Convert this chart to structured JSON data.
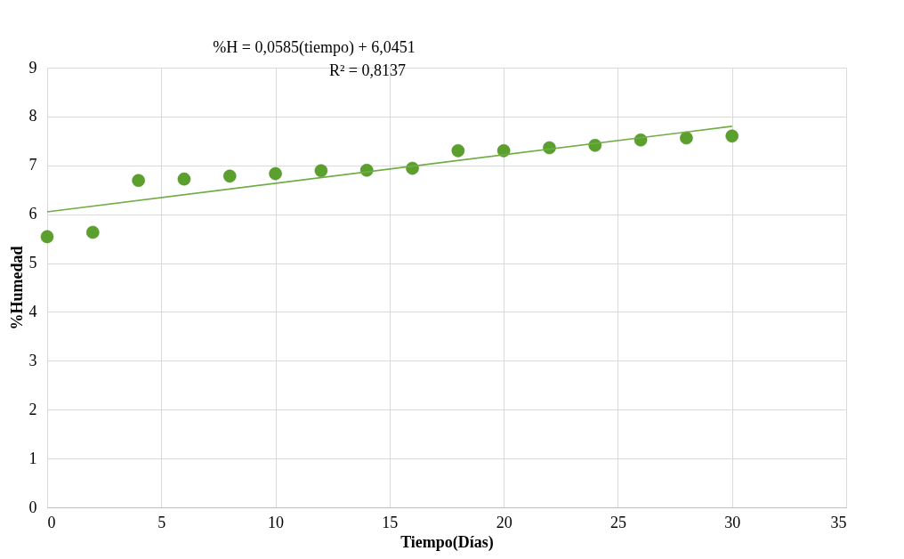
{
  "chart_data": {
    "type": "scatter",
    "xlabel": "Tiempo(Días)",
    "ylabel": "%Humedad",
    "annotations": [
      "%H = 0,0585(tiempo) + 6,0451",
      "R² = 0,8137"
    ],
    "x": [
      0,
      2,
      4,
      6,
      8,
      10,
      12,
      14,
      16,
      18,
      20,
      22,
      24,
      26,
      28,
      30
    ],
    "series": [
      {
        "color": "#5b9f2c",
        "values": [
          5.54,
          5.63,
          6.69,
          6.72,
          6.78,
          6.83,
          6.89,
          6.9,
          6.94,
          7.3,
          7.3,
          7.36,
          7.41,
          7.52,
          7.56,
          7.6
        ],
        "marker": "circle"
      },
      {
        "type": "line",
        "color": "#70ad47",
        "x": [
          0,
          30
        ],
        "values": [
          6.05,
          7.8
        ],
        "line_style": "solid",
        "marker": "none"
      }
    ],
    "xlim": [
      0,
      35
    ],
    "xticks": [
      0,
      5,
      10,
      15,
      20,
      25,
      30,
      35
    ],
    "ylim": [
      0,
      9
    ],
    "yticks": [
      0,
      1,
      2,
      3,
      4,
      5,
      6,
      7,
      8,
      9
    ],
    "grid": true
  }
}
